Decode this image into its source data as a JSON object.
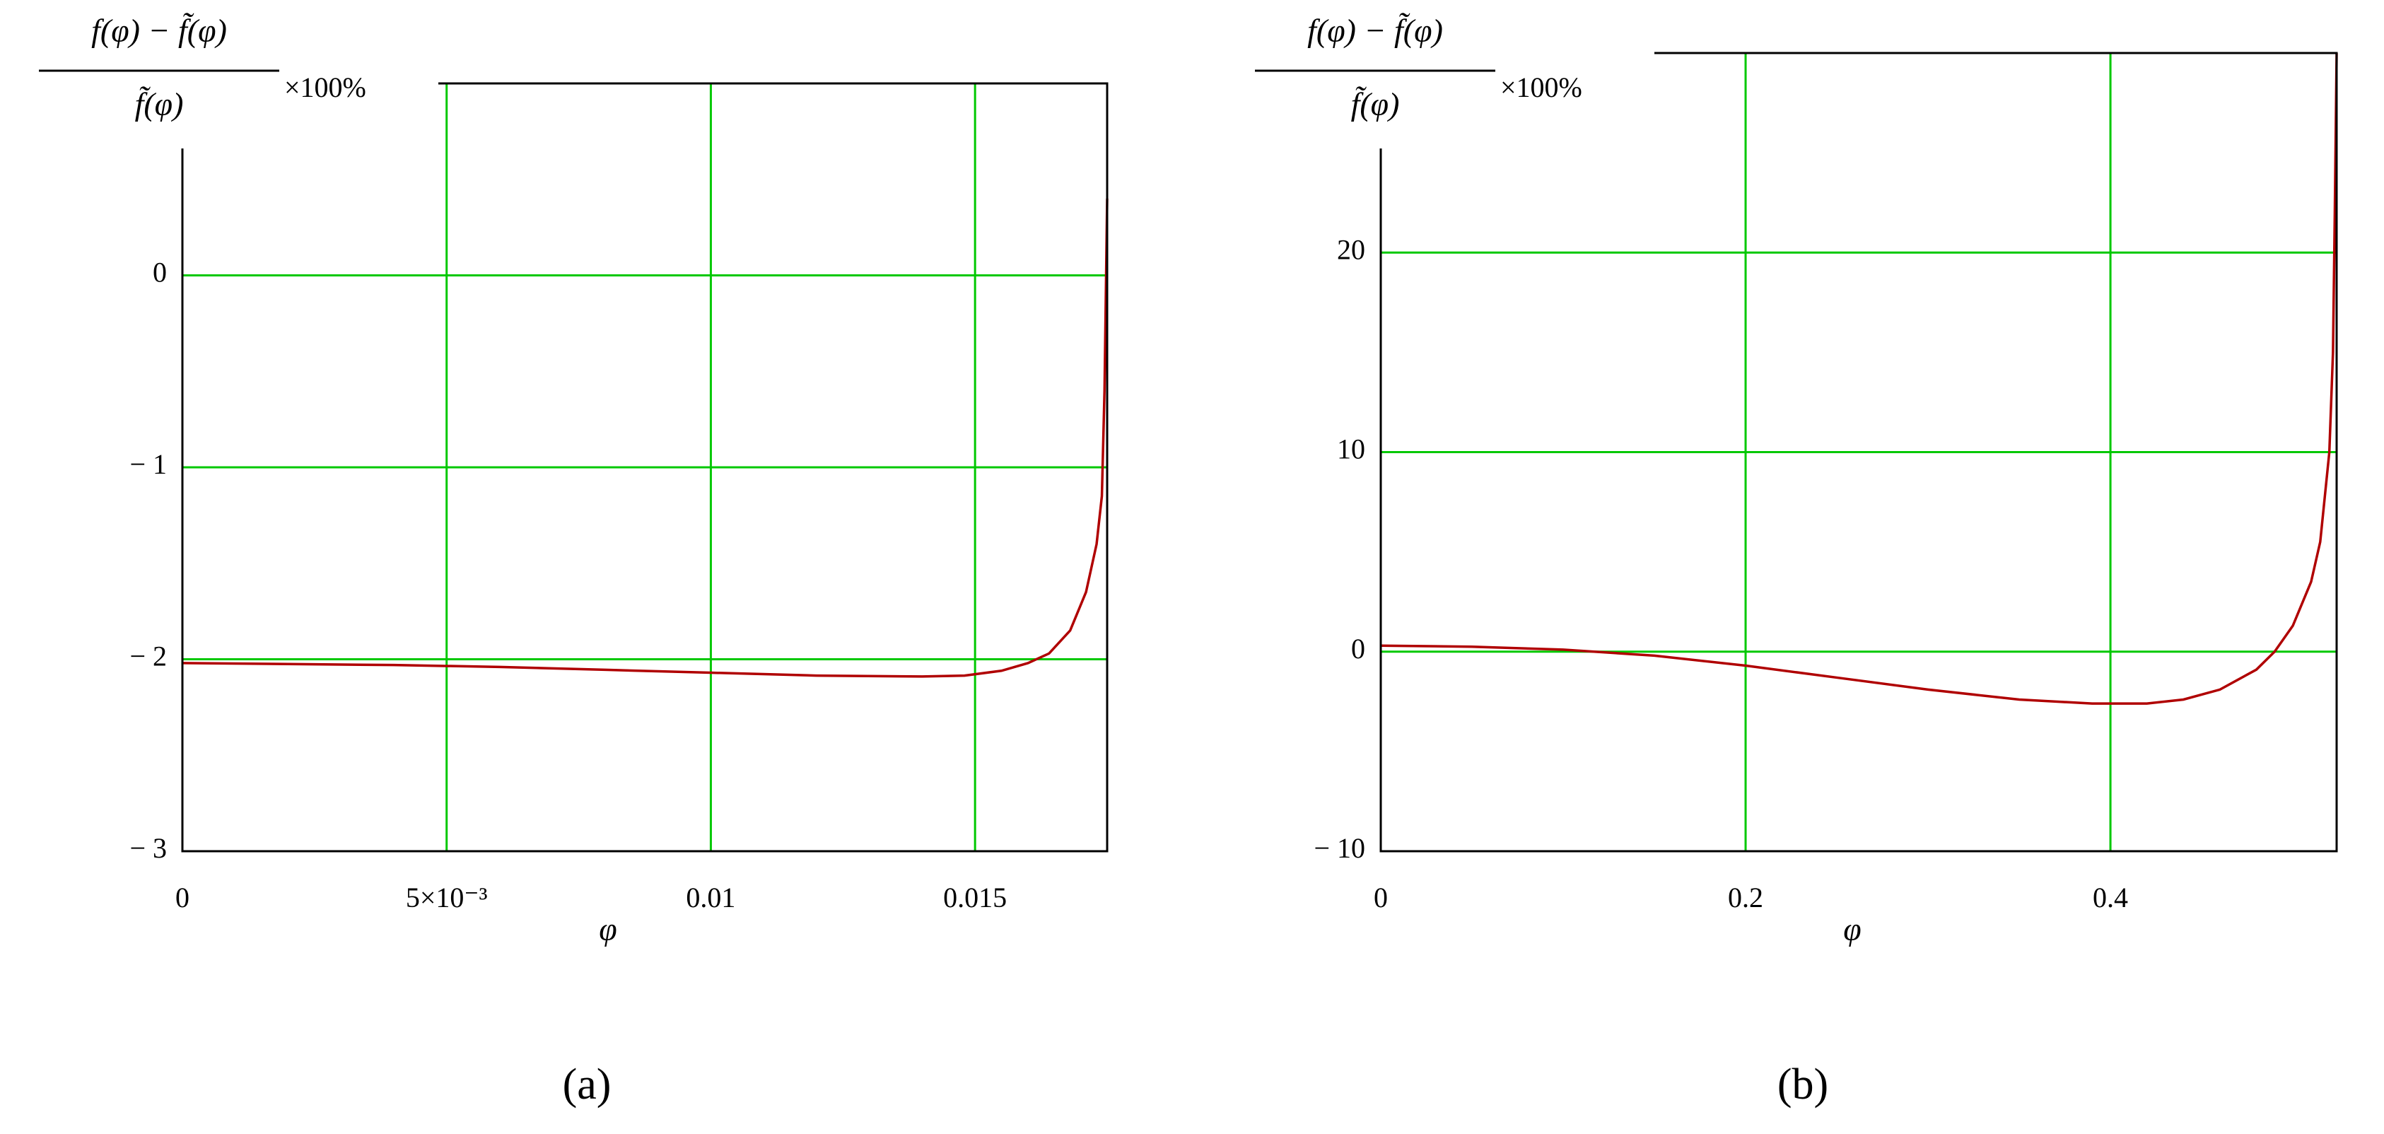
{
  "chart_data": [
    {
      "type": "line",
      "panel_label": "(a)",
      "y_label_numerator": "f(φ) − f̃(φ)",
      "y_label_denominator": "f̃(φ)",
      "y_label_suffix": "×100%",
      "x_label": "φ",
      "xlim": [
        0,
        0.0175
      ],
      "xticks": [
        0,
        {
          "value": 0.005,
          "label": "5×10⁻³"
        },
        0.01,
        0.015
      ],
      "ylim": [
        -3,
        1
      ],
      "yticks": [
        {
          "value": -3,
          "label": "− 3"
        },
        {
          "value": -2,
          "label": "− 2"
        },
        {
          "value": -1,
          "label": "− 1"
        },
        0
      ],
      "grid": true,
      "grid_color": "#00c800",
      "series": [
        {
          "color": "#b00000",
          "x": [
            0,
            0.002,
            0.004,
            0.006,
            0.008,
            0.01,
            0.012,
            0.014,
            0.0148,
            0.0155,
            0.016,
            0.0164,
            0.0168,
            0.0171,
            0.0173,
            0.0174,
            0.01745,
            0.0175
          ],
          "values": [
            -2.02,
            -2.025,
            -2.03,
            -2.04,
            -2.055,
            -2.07,
            -2.085,
            -2.09,
            -2.085,
            -2.06,
            -2.02,
            -1.97,
            -1.85,
            -1.65,
            -1.4,
            -1.15,
            -0.6,
            0.4
          ]
        }
      ]
    },
    {
      "type": "line",
      "panel_label": "(b)",
      "y_label_numerator": "f(φ) − f̃(φ)",
      "y_label_denominator": "f̃(φ)",
      "y_label_suffix": "×100%",
      "x_label": "φ",
      "xlim": [
        0,
        0.524
      ],
      "xticks": [
        0,
        0.2,
        0.4
      ],
      "ylim": [
        -10,
        30
      ],
      "yticks": [
        {
          "value": -10,
          "label": "− 10"
        },
        0,
        10,
        20
      ],
      "grid": true,
      "grid_color": "#00c800",
      "series": [
        {
          "color": "#b00000",
          "x": [
            0,
            0.05,
            0.1,
            0.15,
            0.2,
            0.25,
            0.3,
            0.35,
            0.39,
            0.42,
            0.44,
            0.46,
            0.48,
            0.49,
            0.5,
            0.51,
            0.515,
            0.52,
            0.522,
            0.523,
            0.524
          ],
          "values": [
            0.3,
            0.25,
            0.1,
            -0.2,
            -0.7,
            -1.3,
            -1.9,
            -2.4,
            -2.6,
            -2.6,
            -2.4,
            -1.9,
            -0.9,
            0,
            1.3,
            3.5,
            5.5,
            10,
            15,
            22,
            30
          ]
        }
      ]
    }
  ]
}
